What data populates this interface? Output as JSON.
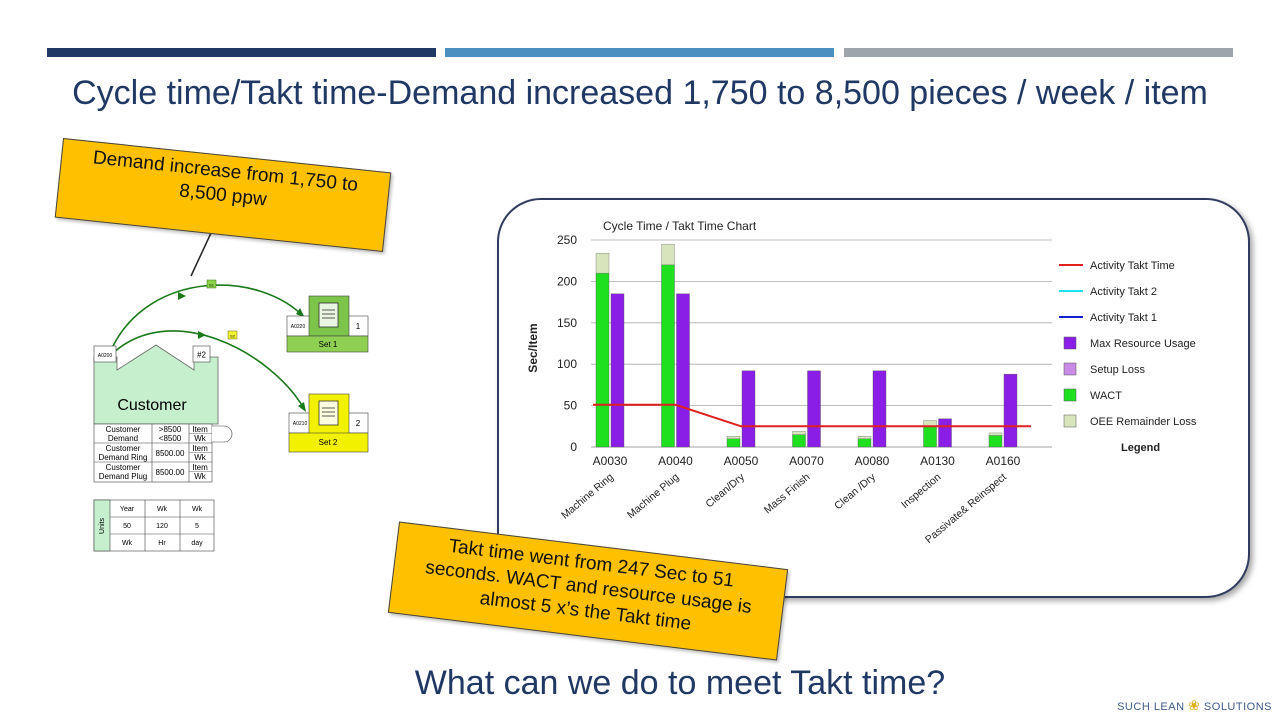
{
  "title": "Cycle time/Takt time-Demand increased 1,750 to 8,500 pieces / week / item",
  "question": "What can we do to meet Takt time?",
  "logo": {
    "text1": "SUCH LEAN",
    "text2": "SOLUTIONS"
  },
  "colors": {
    "bar1": "#1f3864",
    "bar2": "#4a8fbf",
    "bar3": "#9ea4ab",
    "callout": "#ffc000"
  },
  "callouts": {
    "demand": {
      "line1": "Demand increase from 1,750 to",
      "line2": "8,500 ppw"
    },
    "takt": {
      "line1": "Takt time went from 247 Sec to 51",
      "line2": "seconds.  WACT and resource  usage is",
      "line3": "almost 5 x’s the Takt time"
    }
  },
  "vsm": {
    "customer": {
      "label": "Customer",
      "code": "A0200",
      "number": "#2"
    },
    "set1": {
      "code": "A0220",
      "num": "1",
      "label": "Set 1"
    },
    "set2": {
      "code": "A0210",
      "num": "2",
      "label": "Set 2"
    },
    "flags": {
      "f1": "S1",
      "f2": "S2"
    },
    "demand_table": [
      {
        "label1": "Customer",
        "label2": "Demand",
        "value1": ">8500",
        "value2": "<8500",
        "unit1": "Item",
        "unit2": "Wk"
      },
      {
        "label1": "Customer",
        "label2": "Demand Ring",
        "value1": "8500.00",
        "unit1": "Item",
        "unit2": "Wk"
      },
      {
        "label1": "Customer",
        "label2": "Demand Plug",
        "value1": "8500.00",
        "unit1": "Item",
        "unit2": "Wk"
      }
    ],
    "units_table": {
      "side_label": "Units",
      "rows": [
        [
          "Year",
          "Wk",
          "Wk"
        ],
        [
          "50",
          "120",
          "5"
        ],
        [
          "Wk",
          "Hr",
          "day"
        ]
      ]
    }
  },
  "chart_data": {
    "type": "bar",
    "title": "Cycle Time / Takt Time Chart",
    "ylabel": "Sec/Item",
    "ylim": [
      0,
      250
    ],
    "yticks": [
      0,
      50,
      100,
      150,
      200,
      250
    ],
    "grid": true,
    "categories": [
      "A0030",
      "A0040",
      "A0050",
      "A0070",
      "A0080",
      "A0130",
      "A0160"
    ],
    "category_names": [
      "Machine Ring",
      "Machine Plug",
      "Clean/Dry",
      "Mass Finish",
      "Clean /Dry",
      "Inspection",
      "Passivate& Reinspect"
    ],
    "series": [
      {
        "name": "WACT",
        "color": "#1ee01e",
        "values": [
          210,
          220,
          10,
          15,
          10,
          25,
          14
        ]
      },
      {
        "name": "OEE Remainder Loss",
        "color": "#d8e4bc",
        "values": [
          24,
          25,
          3,
          4,
          3,
          7,
          3
        ]
      },
      {
        "name": "Max Resource Usage",
        "color": "#8b1ee6",
        "values": [
          185,
          185,
          92,
          92,
          92,
          34,
          88
        ]
      }
    ],
    "takt_line": {
      "name": "Activity Takt Time",
      "color": "#e02020",
      "values": [
        51,
        51,
        25,
        25,
        25,
        25,
        25
      ]
    },
    "legend": {
      "title": "Legend",
      "position": "right",
      "items": [
        {
          "name": "Activity Takt Time",
          "kind": "line",
          "color": "#e02020"
        },
        {
          "name": "Activity Takt 2",
          "kind": "line",
          "color": "#20e0f0"
        },
        {
          "name": "Activity Takt 1",
          "kind": "line",
          "color": "#1020d0"
        },
        {
          "name": "Max Resource Usage",
          "kind": "box",
          "color": "#8b1ee6"
        },
        {
          "name": "Setup Loss",
          "kind": "box",
          "color": "#c98ae8"
        },
        {
          "name": "WACT",
          "kind": "box",
          "color": "#1ee01e"
        },
        {
          "name": "OEE Remainder Loss",
          "kind": "box",
          "color": "#d8e4bc"
        }
      ]
    }
  }
}
